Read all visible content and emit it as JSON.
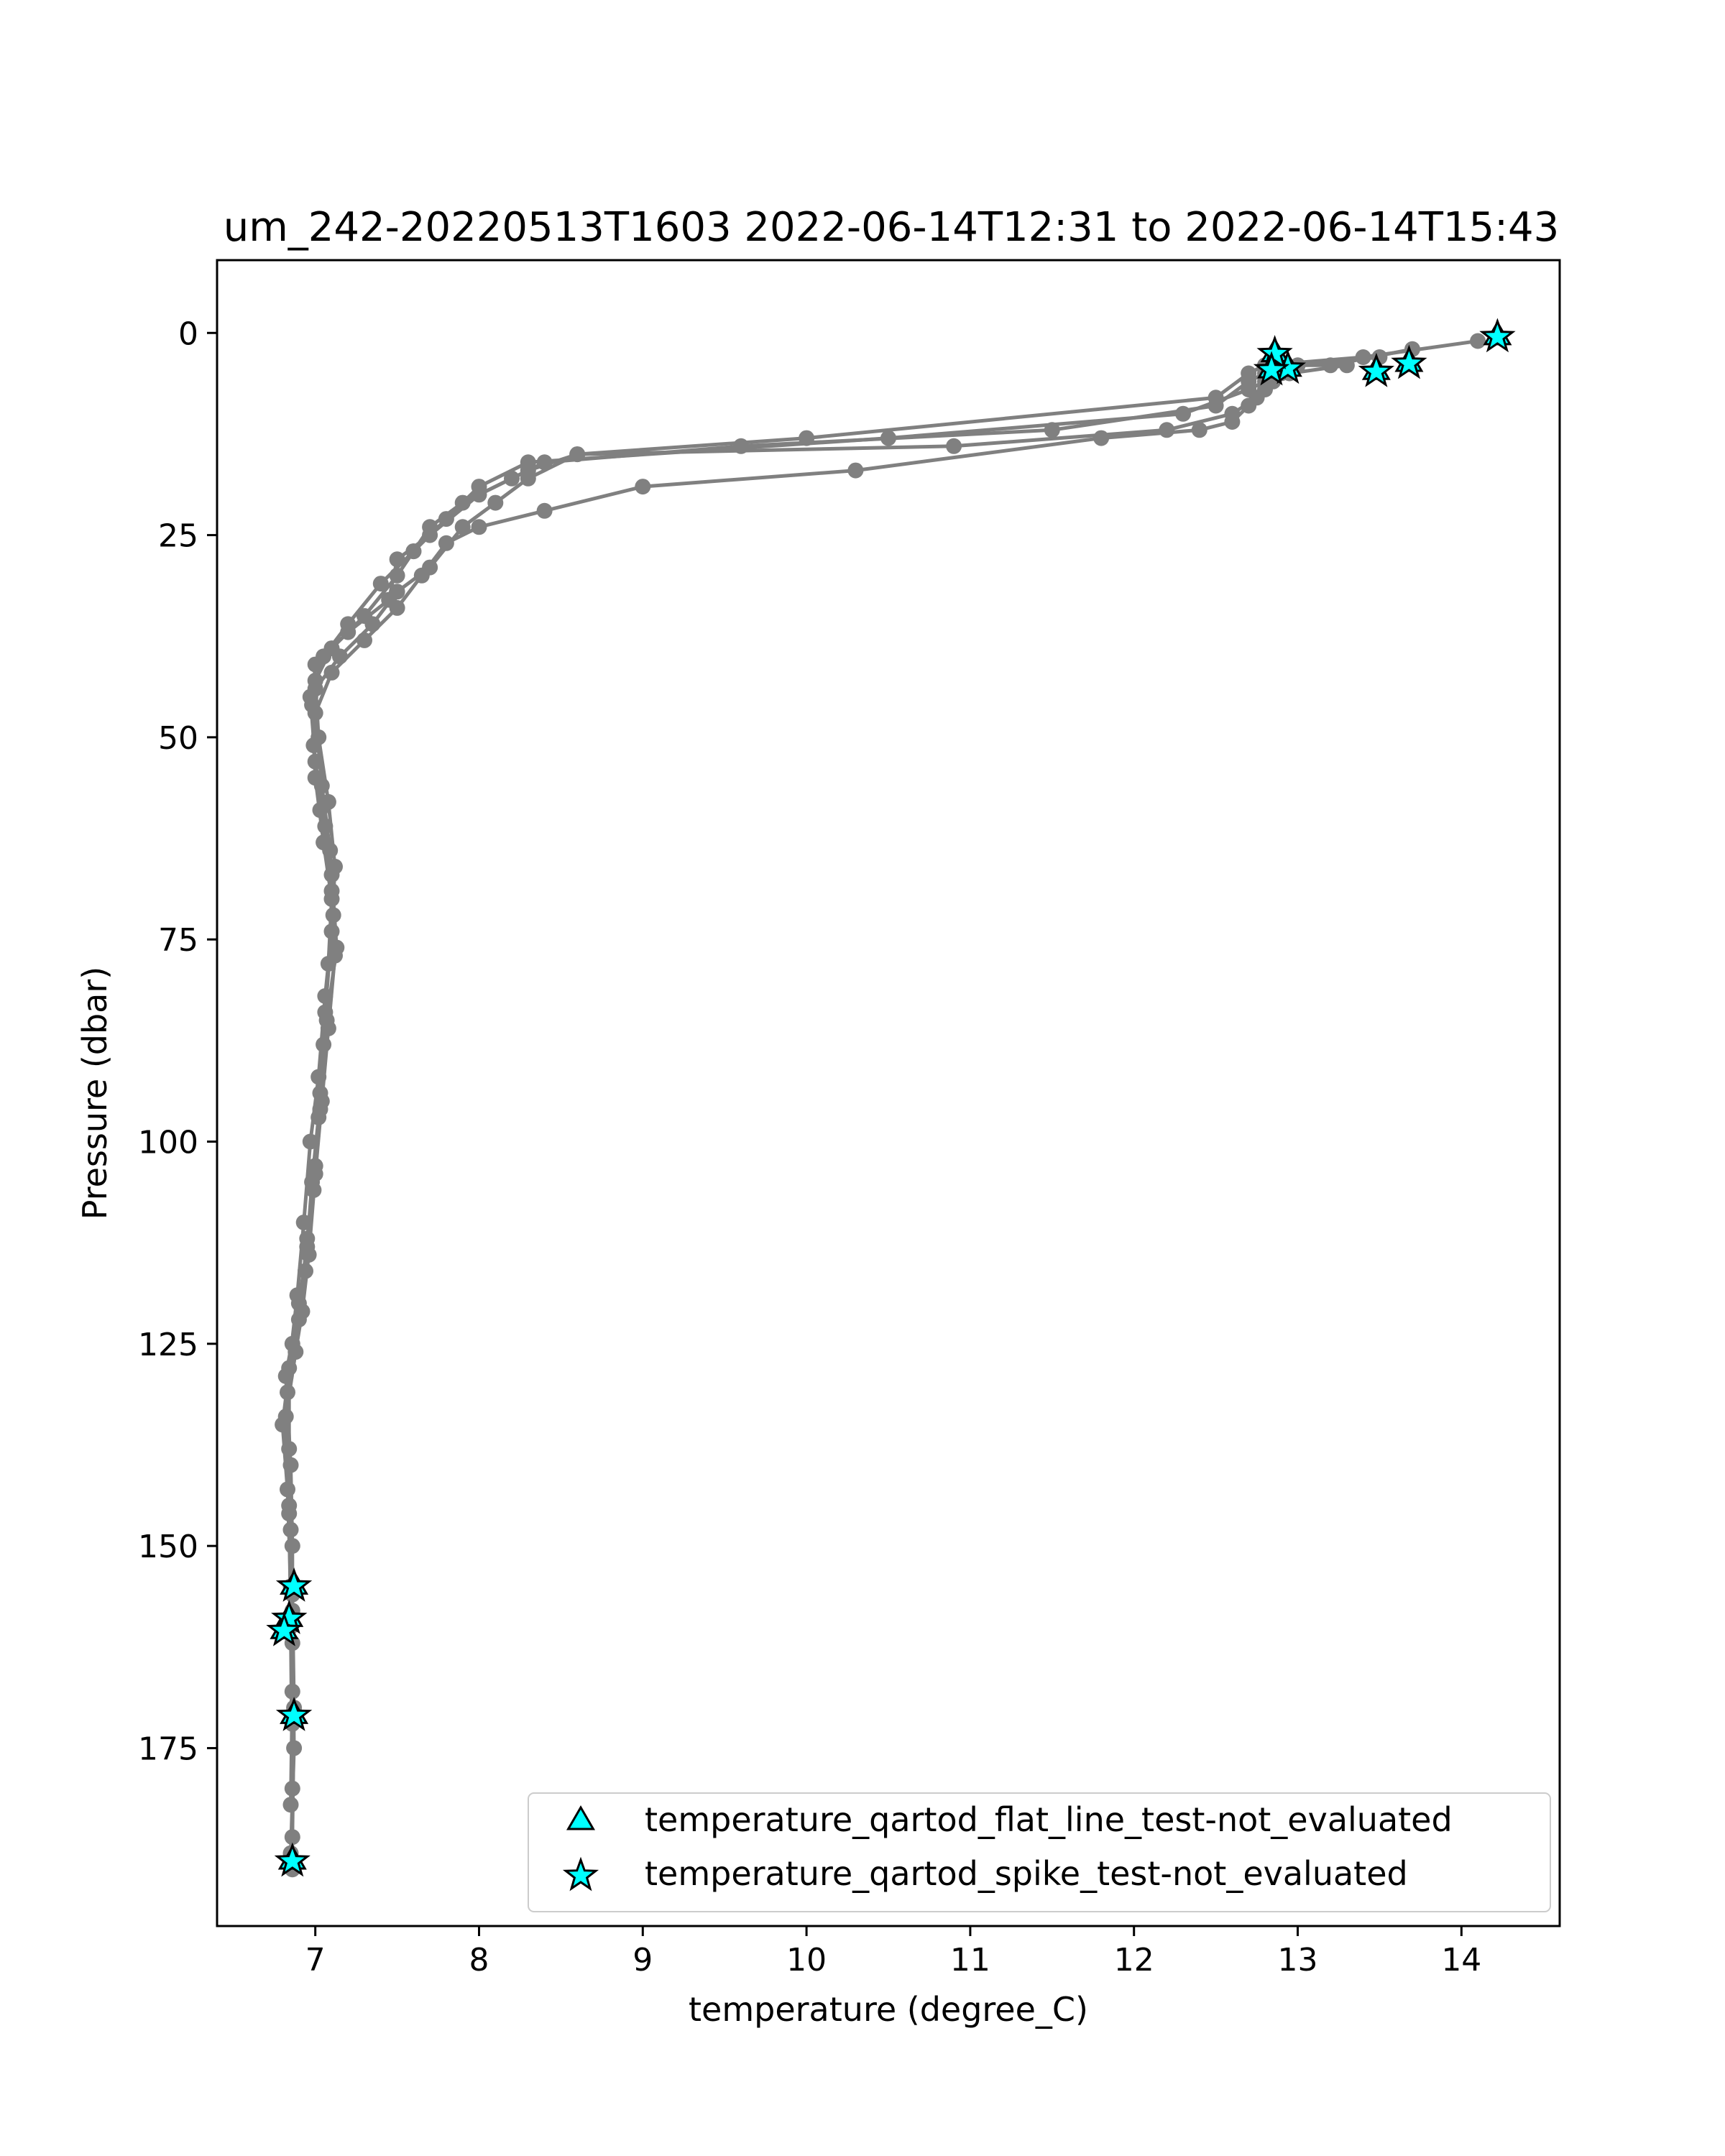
{
  "chart_data": {
    "type": "line",
    "title": "um_242-20220513T1603 2022-06-14T12:31 to 2022-06-14T15:43",
    "xlabel": "temperature (degree_C)",
    "ylabel": "Pressure (dbar)",
    "xlim": [
      6.4,
      14.6
    ],
    "ylim": [
      197,
      -9
    ],
    "y_inverted": true,
    "xticks": [
      7,
      8,
      9,
      10,
      11,
      12,
      13,
      14
    ],
    "yticks": [
      0,
      25,
      50,
      75,
      100,
      125,
      150,
      175
    ],
    "grid": false,
    "legend_position": "lower-right",
    "line_color": "#808080",
    "marker_color": "#00ffff",
    "series": [
      {
        "x": [
          14.1,
          13.4,
          12.8,
          12.7,
          12.5,
          10.0,
          8.6,
          8.3,
          8.0,
          7.7,
          7.5,
          7.45,
          7.2,
          7.0,
          6.98,
          7.0,
          7.05,
          7.1,
          7.08,
          7.05,
          7.02,
          6.98,
          6.95,
          6.9,
          6.82,
          6.85,
          6.86,
          6.86,
          6.87,
          6.85
        ],
        "y": [
          1,
          3,
          4,
          5,
          8,
          13,
          15,
          17,
          20,
          25,
          28,
          33,
          37,
          41,
          46,
          55,
          63,
          70,
          78,
          88,
          97,
          105,
          113,
          120,
          129,
          140,
          150,
          162,
          175,
          188
        ]
      },
      {
        "x": [
          13.7,
          13.2,
          12.9,
          12.8,
          12.7,
          12.5,
          11.5,
          9.6,
          8.4,
          8.2,
          7.9,
          7.7,
          7.6,
          7.5,
          7.3,
          7.1,
          7.0,
          7.02,
          7.08,
          7.12,
          7.1,
          7.06,
          7.03,
          7.0,
          6.95,
          6.9,
          6.83,
          6.84,
          6.85,
          6.86
        ],
        "y": [
          2,
          4,
          4,
          5,
          6,
          9,
          12,
          14,
          16,
          18,
          21,
          24,
          27,
          30,
          35,
          39,
          43,
          50,
          58,
          66,
          74,
          84,
          94,
          103,
          112,
          122,
          131,
          145,
          160,
          180
        ]
      },
      {
        "x": [
          13.5,
          13.0,
          12.85,
          12.8,
          12.7,
          12.3,
          10.5,
          8.3,
          8.0,
          7.8,
          7.6,
          7.4,
          7.2,
          7.05,
          6.97,
          7.0,
          7.06,
          7.1,
          7.12,
          7.08,
          7.04,
          7.0,
          6.96,
          6.92,
          6.88,
          6.82,
          6.84,
          6.86,
          6.87,
          6.86
        ],
        "y": [
          3,
          4,
          5,
          6,
          7,
          10,
          13,
          16,
          19,
          23,
          27,
          31,
          36,
          40,
          45,
          53,
          61,
          69,
          77,
          86,
          95,
          104,
          114,
          121,
          126,
          134,
          146,
          156,
          170,
          186
        ]
      },
      {
        "x": [
          13.3,
          12.95,
          12.85,
          12.75,
          12.6,
          12.2,
          10.9,
          8.6,
          8.3,
          8.1,
          7.9,
          7.7,
          7.5,
          7.35,
          7.15,
          7.0,
          6.99,
          7.03,
          7.1,
          7.13,
          7.07,
          7.03,
          6.99,
          6.94,
          6.86,
          6.8,
          6.83,
          6.85,
          6.86,
          6.85
        ],
        "y": [
          4,
          5,
          6,
          8,
          10,
          12,
          14,
          15,
          18,
          21,
          24,
          29,
          32,
          36,
          40,
          44,
          51,
          59,
          67,
          76,
          85,
          96,
          106,
          116,
          125,
          135,
          143,
          155,
          168,
          182
        ]
      },
      {
        "x": [
          12.9,
          12.8,
          12.7,
          12.6,
          12.4,
          11.8,
          10.3,
          9.0,
          8.4,
          8.0,
          7.8,
          7.65,
          7.5,
          7.3,
          7.1,
          7.0,
          7.04,
          7.09,
          7.11,
          7.06,
          7.02,
          6.97,
          6.93,
          6.89,
          6.84,
          6.84,
          6.85,
          6.86,
          6.86,
          6.86
        ],
        "y": [
          5,
          7,
          9,
          11,
          12,
          13,
          17,
          19,
          22,
          24,
          26,
          30,
          34,
          38,
          42,
          47,
          56,
          64,
          72,
          82,
          92,
          100,
          110,
          119,
          128,
          138,
          148,
          158,
          172,
          190
        ]
      }
    ],
    "flags": [
      {
        "name": "temperature_qartod_flat_line_test-not_evaluated",
        "marker": "triangle",
        "x": [
          14.22,
          13.68,
          13.48,
          12.94,
          12.86,
          12.84,
          6.87,
          6.84,
          6.81,
          6.87,
          6.86
        ],
        "y": [
          0.5,
          3.8,
          4.8,
          4.4,
          2.6,
          4.6,
          155,
          159,
          160.5,
          171,
          189
        ]
      },
      {
        "name": "temperature_qartod_spike_test-not_evaluated",
        "marker": "star",
        "x": [
          14.22,
          13.68,
          13.48,
          12.94,
          12.86,
          12.84,
          6.87,
          6.84,
          6.81,
          6.87,
          6.86
        ],
        "y": [
          0.5,
          3.8,
          4.8,
          4.4,
          2.6,
          4.6,
          155,
          159,
          160.5,
          171,
          189
        ]
      }
    ]
  }
}
